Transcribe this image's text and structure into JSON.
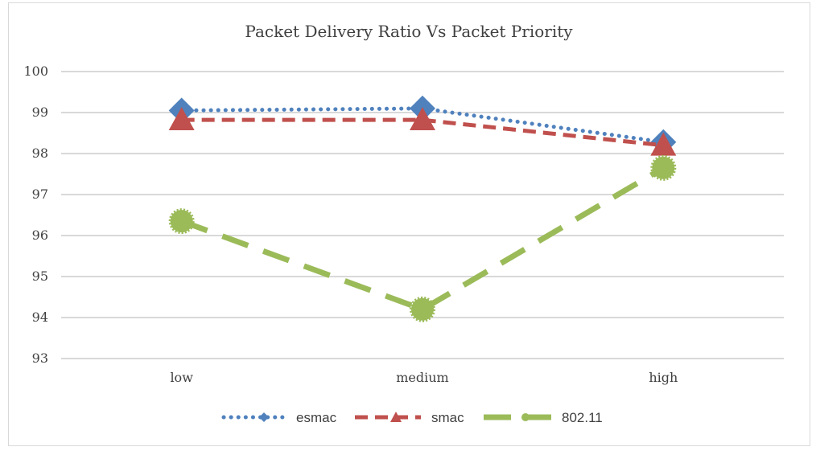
{
  "chart_data": {
    "type": "line",
    "title": "Packet Delivery Ratio Vs Packet Priority",
    "categories": [
      "low",
      "medium",
      "high"
    ],
    "ylim": [
      93,
      100
    ],
    "yticks": [
      93,
      94,
      95,
      96,
      97,
      98,
      99,
      100
    ],
    "grid": true,
    "legend": "bottom",
    "series": [
      {
        "name": "esmac",
        "values": [
          99.05,
          99.1,
          98.28
        ],
        "color": "#4f81bd",
        "marker": "diamond",
        "line": "dotted"
      },
      {
        "name": "smac",
        "values": [
          98.82,
          98.82,
          98.2
        ],
        "color": "#c0504d",
        "marker": "triangle",
        "line": "dashed"
      },
      {
        "name": "802.11",
        "values": [
          96.35,
          94.2,
          97.65
        ],
        "color": "#9bbb59",
        "marker": "circle",
        "line": "longdash"
      }
    ]
  }
}
